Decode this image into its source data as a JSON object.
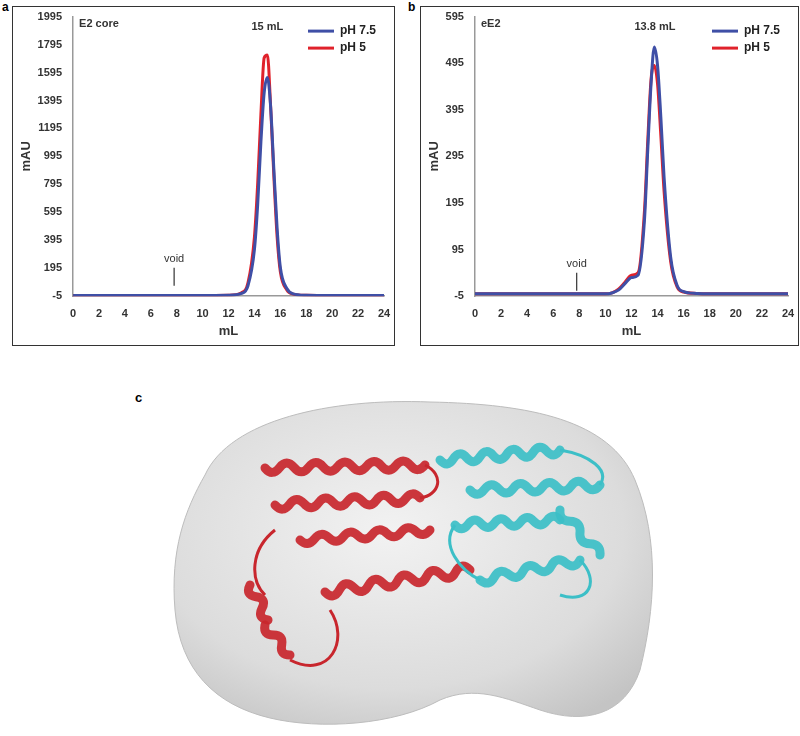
{
  "chart_data": [
    {
      "panel": "a",
      "type": "line",
      "title": "E2 core",
      "x_label": "mL",
      "y_label": "mAU",
      "x": [
        0,
        2,
        4,
        6,
        8,
        10,
        12,
        13,
        13.5,
        14,
        14.25,
        14.5,
        14.75,
        15,
        15.25,
        15.5,
        15.75,
        16,
        16.5,
        17,
        18,
        20,
        22,
        24
      ],
      "series": [
        {
          "name": "pH 7.5",
          "color": "#3f4fa6",
          "values": [
            0,
            0,
            0,
            0,
            0,
            0,
            2,
            15,
            70,
            330,
            650,
            1100,
            1450,
            1560,
            1350,
            900,
            480,
            200,
            50,
            12,
            2,
            0,
            0,
            0
          ]
        },
        {
          "name": "pH 5",
          "color": "#e0222b",
          "values": [
            0,
            0,
            0,
            0,
            0,
            0,
            2,
            20,
            90,
            420,
            800,
            1300,
            1700,
            1720,
            1350,
            850,
            420,
            170,
            40,
            10,
            2,
            0,
            0,
            0
          ]
        }
      ],
      "xlim": [
        0,
        24
      ],
      "xticks": [
        0,
        2,
        4,
        6,
        8,
        10,
        12,
        14,
        16,
        18,
        20,
        22,
        24
      ],
      "ylim": [
        -5,
        1995
      ],
      "yticks": [
        -5,
        195,
        395,
        595,
        795,
        995,
        1195,
        1395,
        1595,
        1795,
        1995
      ],
      "grid": false,
      "legend": "upper right",
      "peak_label": {
        "text": "15 mL",
        "x": 15,
        "y": 1880
      },
      "void_marker": {
        "text": "void",
        "x": 7.8,
        "y": 220
      }
    },
    {
      "panel": "b",
      "type": "line",
      "title": "eE2",
      "x_label": "mL",
      "y_label": "mAU",
      "x": [
        0,
        2,
        4,
        6,
        8,
        10,
        10.5,
        11,
        11.5,
        12,
        12.5,
        13,
        13.25,
        13.5,
        13.75,
        14,
        14.25,
        14.5,
        15,
        15.5,
        16,
        17,
        18,
        20,
        22,
        24
      ],
      "series": [
        {
          "name": "pH 7.5",
          "color": "#3f4fa6",
          "values": [
            0,
            0,
            0,
            0,
            0,
            0,
            2,
            8,
            22,
            35,
            40,
            160,
            310,
            450,
            530,
            490,
            380,
            250,
            80,
            18,
            5,
            1,
            0,
            0,
            0,
            0
          ]
        },
        {
          "name": "pH 5",
          "color": "#e0222b",
          "values": [
            0,
            0,
            0,
            0,
            0,
            0,
            2,
            10,
            25,
            40,
            45,
            180,
            330,
            460,
            490,
            450,
            340,
            220,
            70,
            15,
            4,
            1,
            0,
            0,
            0,
            0
          ]
        }
      ],
      "xlim": [
        0,
        24
      ],
      "xticks": [
        0,
        2,
        4,
        6,
        8,
        10,
        12,
        14,
        16,
        18,
        20,
        22,
        24
      ],
      "ylim": [
        -5,
        595
      ],
      "yticks": [
        -5,
        95,
        195,
        295,
        395,
        495,
        595
      ],
      "grid": false,
      "legend": "upper right",
      "peak_label": {
        "text": "13.8 mL",
        "x": 13.8,
        "y": 560
      },
      "void_marker": {
        "text": "void",
        "x": 7.8,
        "y": 52
      }
    }
  ],
  "image_panel": {
    "panel": "c"
  }
}
